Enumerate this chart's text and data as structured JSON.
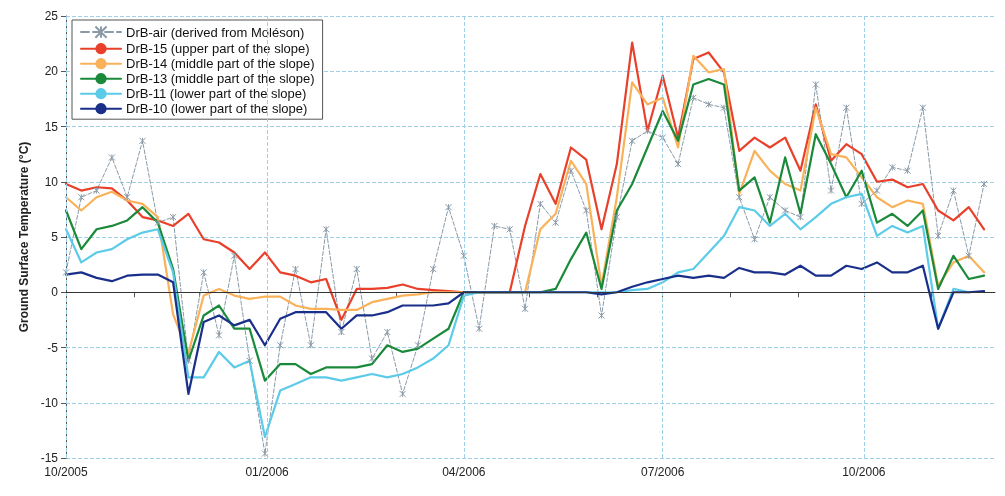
{
  "chart_data": {
    "type": "line",
    "ylabel": "Ground Surface Temperature (°C)",
    "x": [
      "2005-10-01",
      "2005-10-08",
      "2005-10-15",
      "2005-10-22",
      "2005-10-29",
      "2005-11-05",
      "2005-11-12",
      "2005-11-19",
      "2005-11-26",
      "2005-12-03",
      "2005-12-10",
      "2005-12-17",
      "2005-12-24",
      "2005-12-31",
      "2006-01-07",
      "2006-01-14",
      "2006-01-21",
      "2006-01-28",
      "2006-02-04",
      "2006-02-11",
      "2006-02-18",
      "2006-02-25",
      "2006-03-04",
      "2006-03-11",
      "2006-03-18",
      "2006-03-25",
      "2006-04-01",
      "2006-04-08",
      "2006-04-15",
      "2006-04-22",
      "2006-04-29",
      "2006-05-06",
      "2006-05-13",
      "2006-05-20",
      "2006-05-27",
      "2006-06-03",
      "2006-06-10",
      "2006-06-17",
      "2006-06-24",
      "2006-07-01",
      "2006-07-08",
      "2006-07-15",
      "2006-07-22",
      "2006-07-29",
      "2006-08-05",
      "2006-08-12",
      "2006-08-19",
      "2006-08-26",
      "2006-09-02",
      "2006-09-09",
      "2006-09-16",
      "2006-09-23",
      "2006-09-30",
      "2006-10-07",
      "2006-10-14",
      "2006-10-21",
      "2006-10-28",
      "2006-11-04",
      "2006-11-11",
      "2006-11-18",
      "2006-11-25"
    ],
    "series": [
      {
        "name": "DrB-air (derived from Moléson)",
        "color": "#8a9aa8",
        "line_style": "dashed",
        "marker": "cross",
        "values": [
          1.8,
          8.6,
          9.2,
          12.2,
          8.6,
          13.7,
          6.3,
          6.8,
          -6.2,
          1.8,
          -3.9,
          3.3,
          -6.2,
          -14.6,
          -4.8,
          2.1,
          -4.8,
          5.7,
          -3.6,
          2.1,
          -6.0,
          -3.6,
          -9.2,
          -4.8,
          2.1,
          7.7,
          3.3,
          -3.3,
          6.0,
          5.7,
          -1.5,
          8.0,
          6.3,
          11.0,
          7.4,
          -2.1,
          6.8,
          13.7,
          14.6,
          14.0,
          11.6,
          17.6,
          17.0,
          16.7,
          8.6,
          4.8,
          8.6,
          7.4,
          6.8,
          18.8,
          9.2,
          16.7,
          8.0,
          9.2,
          11.3,
          11.0,
          16.7,
          5.1,
          9.2,
          3.3,
          9.8
        ]
      },
      {
        "name": "DrB-15 (upper part of the slope)",
        "color": "#e8402a",
        "line_style": "solid",
        "marker": "none",
        "values": [
          9.8,
          9.2,
          9.5,
          9.4,
          8.3,
          6.8,
          6.5,
          6.0,
          7.1,
          4.8,
          4.5,
          3.6,
          2.1,
          3.6,
          1.8,
          1.5,
          0.9,
          1.2,
          -2.5,
          0.3,
          0.3,
          0.4,
          0.7,
          0.3,
          0.2,
          0.1,
          0,
          0,
          0,
          0,
          6.0,
          10.7,
          8.0,
          13.1,
          12.0,
          5.7,
          11.6,
          22.6,
          14.6,
          19.6,
          14.0,
          21.1,
          21.7,
          19.9,
          12.8,
          14.0,
          13.1,
          14.0,
          11.0,
          17.0,
          11.9,
          13.4,
          12.5,
          10.0,
          10.2,
          9.5,
          9.8,
          7.4,
          6.5,
          7.7,
          5.7
        ]
      },
      {
        "name": "DrB-14 (middle part of the slope)",
        "color": "#f9b25a",
        "line_style": "solid",
        "marker": "none",
        "values": [
          8.6,
          7.4,
          8.6,
          9.1,
          8.3,
          8.0,
          6.8,
          -2.0,
          -5.5,
          -0.3,
          0.3,
          -0.3,
          -0.6,
          -0.4,
          -0.4,
          -1.2,
          -1.5,
          -1.5,
          -1.6,
          -1.6,
          -0.9,
          -0.6,
          -0.3,
          -0.2,
          0,
          0,
          0,
          0,
          0,
          0,
          0,
          5.7,
          7.1,
          11.9,
          9.8,
          0.6,
          8.6,
          19.0,
          17.0,
          17.6,
          13.1,
          21.4,
          19.9,
          20.2,
          8.9,
          12.8,
          11.0,
          9.8,
          9.2,
          16.7,
          12.5,
          12.2,
          10.4,
          8.6,
          7.7,
          8.3,
          8.0,
          0.6,
          2.7,
          3.3,
          1.8
        ]
      },
      {
        "name": "DrB-13 (middle part of the slope)",
        "color": "#1a8a3a",
        "line_style": "solid",
        "marker": "none",
        "values": [
          7.4,
          3.9,
          5.7,
          6.0,
          6.5,
          7.7,
          6.3,
          2.1,
          -6.2,
          -2.1,
          -1.2,
          -3.3,
          -3.3,
          -8.0,
          -6.5,
          -6.5,
          -7.4,
          -6.8,
          -6.8,
          -6.8,
          -6.5,
          -4.8,
          -5.4,
          -5.1,
          -4.2,
          -3.3,
          0,
          0,
          0,
          0,
          0,
          0,
          0.3,
          3.0,
          5.4,
          0.3,
          7.4,
          9.8,
          13.1,
          16.4,
          13.7,
          18.8,
          19.3,
          18.8,
          9.2,
          10.4,
          6.3,
          12.2,
          7.1,
          14.3,
          11.6,
          8.6,
          11.0,
          6.3,
          7.1,
          6.0,
          7.4,
          0.3,
          3.3,
          1.2,
          1.5
        ]
      },
      {
        "name": "DrB-11 (lower part of the slope)",
        "color": "#5ccbe8",
        "line_style": "solid",
        "marker": "none",
        "values": [
          5.7,
          2.7,
          3.6,
          3.9,
          4.8,
          5.4,
          5.7,
          1.8,
          -7.7,
          -7.7,
          -5.4,
          -6.8,
          -6.2,
          -13.1,
          -8.9,
          -8.3,
          -7.7,
          -7.7,
          -8.0,
          -7.7,
          -7.4,
          -7.7,
          -7.4,
          -6.8,
          -6.0,
          -4.8,
          -0.3,
          0,
          0,
          0,
          0,
          0,
          0,
          0,
          0,
          0,
          0,
          0.2,
          0.3,
          0.9,
          1.8,
          2.1,
          3.6,
          5.1,
          7.7,
          7.4,
          6.0,
          7.1,
          5.7,
          6.8,
          8.0,
          8.6,
          8.9,
          5.1,
          6.0,
          5.4,
          6.0,
          -3.3,
          0.3,
          0,
          null
        ]
      },
      {
        "name": "DrB-10 (lower part of the slope)",
        "color": "#1a2f8a",
        "line_style": "solid",
        "marker": "none",
        "values": [
          1.6,
          1.8,
          1.3,
          1.0,
          1.5,
          1.6,
          1.6,
          0.9,
          -9.2,
          -2.7,
          -2.1,
          -3.0,
          -2.5,
          -4.8,
          -2.4,
          -1.8,
          -1.8,
          -1.8,
          -3.3,
          -2.1,
          -2.1,
          -1.8,
          -1.2,
          -1.2,
          -1.2,
          -1.0,
          0,
          0,
          0,
          0,
          0,
          0,
          0,
          0,
          0,
          -0.2,
          0,
          0.5,
          0.9,
          1.2,
          1.5,
          1.3,
          1.5,
          1.3,
          2.2,
          1.8,
          1.8,
          1.6,
          2.4,
          1.5,
          1.5,
          2.4,
          2.1,
          2.7,
          1.8,
          1.8,
          2.4,
          -3.3,
          0,
          0,
          0.1
        ]
      }
    ],
    "xlim": [
      "2005-10-01",
      "2006-11-30"
    ],
    "xticks": [
      {
        "value": "2005-10-01",
        "label": "10/2005"
      },
      {
        "value": "2005-11-01",
        "label": null
      },
      {
        "value": "2005-12-01",
        "label": null
      },
      {
        "value": "2006-01-01",
        "label": "01/2006"
      },
      {
        "value": "2006-02-01",
        "label": null
      },
      {
        "value": "2006-03-01",
        "label": null
      },
      {
        "value": "2006-04-01",
        "label": "04/2006"
      },
      {
        "value": "2006-05-01",
        "label": null
      },
      {
        "value": "2006-06-01",
        "label": null
      },
      {
        "value": "2006-07-01",
        "label": "07/2006"
      },
      {
        "value": "2006-08-01",
        "label": null
      },
      {
        "value": "2006-09-01",
        "label": null
      },
      {
        "value": "2006-10-01",
        "label": "10/2006"
      },
      {
        "value": "2006-11-01",
        "label": null
      }
    ],
    "ylim": [
      -15,
      25
    ],
    "yticks": [
      -15,
      -10,
      -5,
      0,
      5,
      10,
      15,
      20,
      25
    ],
    "ref_lines": [
      {
        "axis": "y",
        "value": 0,
        "color": "#333333"
      }
    ],
    "grid": true,
    "legend": "top left"
  }
}
